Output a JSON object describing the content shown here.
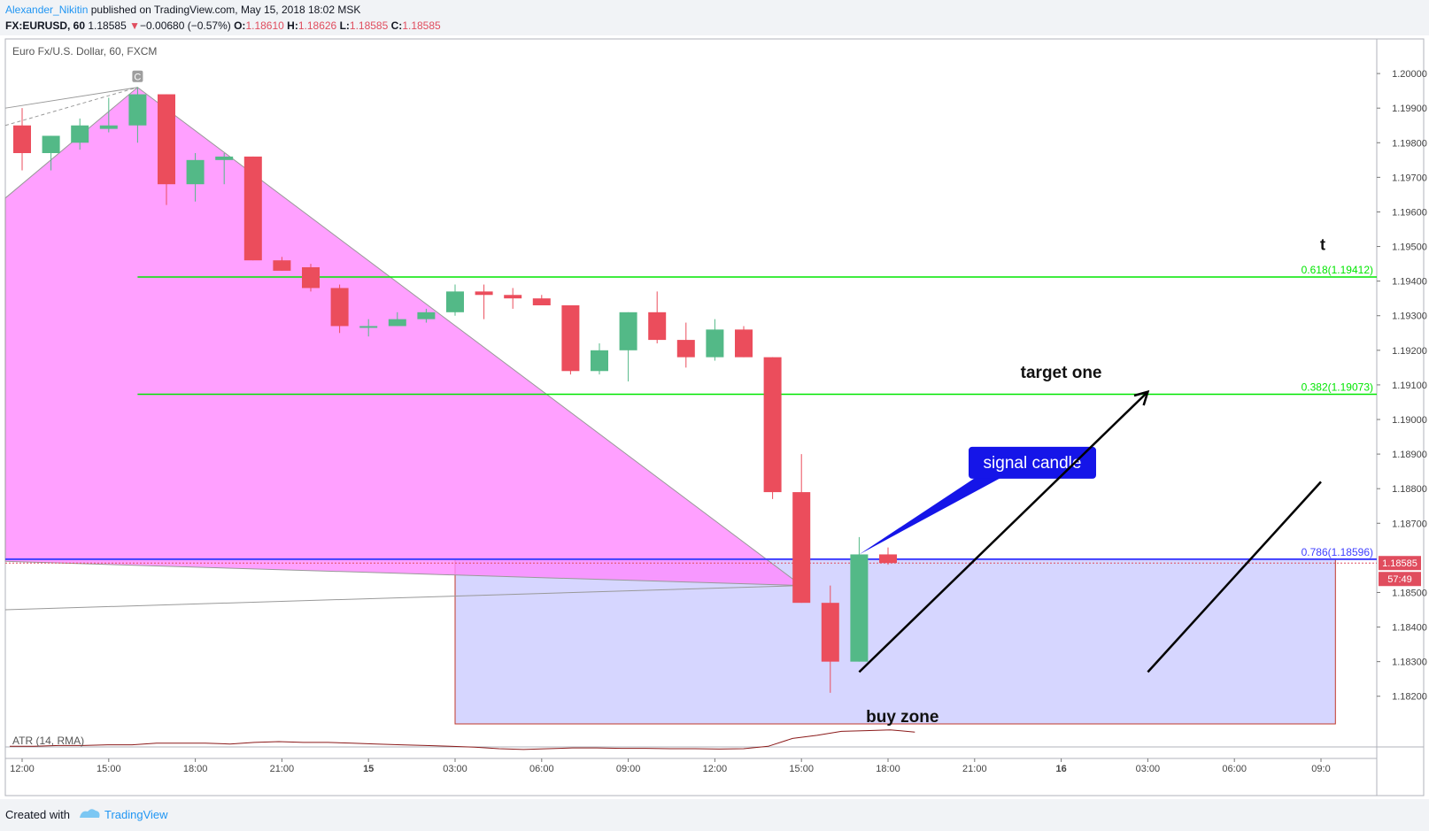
{
  "header": {
    "author": "Alexander_Nikitin",
    "published_text": "published on TradingView.com, May 15, 2018 18:02 MSK",
    "symbol": "FX:EURUSD, 60",
    "last": "1.18585",
    "change_arrow": "▼",
    "change": "−0.00680 (−0.57%)",
    "o_label": "O:",
    "o_value": "1.18610",
    "h_label": "H:",
    "h_value": "1.18626",
    "l_label": "L:",
    "l_value": "1.18585",
    "c_label": "C:",
    "c_value": "1.18585"
  },
  "footer": {
    "created_with": "Created with",
    "brand": "TradingView"
  },
  "chart_data": {
    "type": "candlestick",
    "instrument_label": "Euro Fx/U.S. Dollar, 60, FXCM",
    "interval_minutes": 60,
    "ylim": [
      1.1812,
      1.201
    ],
    "y_ticks": [
      1.182,
      1.183,
      1.184,
      1.185,
      1.187,
      1.188,
      1.189,
      1.19,
      1.191,
      1.192,
      1.193,
      1.194,
      1.195,
      1.196,
      1.197,
      1.198,
      1.199,
      1.2
    ],
    "y_tick_labels": [
      "1.18200",
      "1.18300",
      "1.18400",
      "1.18500",
      "1.18700",
      "1.18800",
      "1.18900",
      "1.19000",
      "1.19100",
      "1.19200",
      "1.19300",
      "1.19400",
      "1.19500",
      "1.19600",
      "1.19700",
      "1.19800",
      "1.19900",
      "1.20000"
    ],
    "x_ticks": [
      {
        "t": "2018-05-14 12:00",
        "label": "12:00"
      },
      {
        "t": "2018-05-14 15:00",
        "label": "15:00"
      },
      {
        "t": "2018-05-14 18:00",
        "label": "18:00"
      },
      {
        "t": "2018-05-14 21:00",
        "label": "21:00"
      },
      {
        "t": "2018-05-15 00:00",
        "label": "15"
      },
      {
        "t": "2018-05-15 03:00",
        "label": "03:00"
      },
      {
        "t": "2018-05-15 06:00",
        "label": "06:00"
      },
      {
        "t": "2018-05-15 09:00",
        "label": "09:00"
      },
      {
        "t": "2018-05-15 12:00",
        "label": "12:00"
      },
      {
        "t": "2018-05-15 15:00",
        "label": "15:00"
      },
      {
        "t": "2018-05-15 18:00",
        "label": "18:00"
      },
      {
        "t": "2018-05-15 21:00",
        "label": "21:00"
      },
      {
        "t": "2018-05-16 00:00",
        "label": "16"
      },
      {
        "t": "2018-05-16 03:00",
        "label": "03:00"
      },
      {
        "t": "2018-05-16 06:00",
        "label": "06:00"
      },
      {
        "t": "2018-05-16 09:00",
        "label": "09:0"
      }
    ],
    "candles": [
      {
        "t": "2018-05-14 12:00",
        "o": 1.1985,
        "h": 1.199,
        "l": 1.1972,
        "c": 1.1977
      },
      {
        "t": "2018-05-14 13:00",
        "o": 1.1977,
        "h": 1.1982,
        "l": 1.1972,
        "c": 1.1982
      },
      {
        "t": "2018-05-14 14:00",
        "o": 1.198,
        "h": 1.1987,
        "l": 1.1978,
        "c": 1.1985
      },
      {
        "t": "2018-05-14 15:00",
        "o": 1.1984,
        "h": 1.1993,
        "l": 1.1983,
        "c": 1.1985
      },
      {
        "t": "2018-05-14 16:00",
        "o": 1.1985,
        "h": 1.1996,
        "l": 1.198,
        "c": 1.1994
      },
      {
        "t": "2018-05-14 17:00",
        "o": 1.1994,
        "h": 1.1994,
        "l": 1.1962,
        "c": 1.1968
      },
      {
        "t": "2018-05-14 18:00",
        "o": 1.1968,
        "h": 1.1977,
        "l": 1.1963,
        "c": 1.1975
      },
      {
        "t": "2018-05-14 19:00",
        "o": 1.1975,
        "h": 1.1977,
        "l": 1.1968,
        "c": 1.1976
      },
      {
        "t": "2018-05-14 20:00",
        "o": 1.1976,
        "h": 1.1976,
        "l": 1.1946,
        "c": 1.1946
      },
      {
        "t": "2018-05-14 21:00",
        "o": 1.1946,
        "h": 1.1947,
        "l": 1.1943,
        "c": 1.1943
      },
      {
        "t": "2018-05-14 22:00",
        "o": 1.1944,
        "h": 1.1945,
        "l": 1.1937,
        "c": 1.1938
      },
      {
        "t": "2018-05-14 23:00",
        "o": 1.1938,
        "h": 1.1939,
        "l": 1.1925,
        "c": 1.1927
      },
      {
        "t": "2018-05-15 00:00",
        "o": 1.1927,
        "h": 1.1929,
        "l": 1.1924,
        "c": 1.1927
      },
      {
        "t": "2018-05-15 01:00",
        "o": 1.1927,
        "h": 1.1931,
        "l": 1.1927,
        "c": 1.1929
      },
      {
        "t": "2018-05-15 02:00",
        "o": 1.1929,
        "h": 1.1932,
        "l": 1.1928,
        "c": 1.1931
      },
      {
        "t": "2018-05-15 03:00",
        "o": 1.1931,
        "h": 1.1939,
        "l": 1.193,
        "c": 1.1937
      },
      {
        "t": "2018-05-15 04:00",
        "o": 1.1937,
        "h": 1.1939,
        "l": 1.1929,
        "c": 1.1936
      },
      {
        "t": "2018-05-15 05:00",
        "o": 1.1936,
        "h": 1.1938,
        "l": 1.1932,
        "c": 1.1935
      },
      {
        "t": "2018-05-15 06:00",
        "o": 1.1935,
        "h": 1.1936,
        "l": 1.1933,
        "c": 1.1933
      },
      {
        "t": "2018-05-15 07:00",
        "o": 1.1933,
        "h": 1.1933,
        "l": 1.1913,
        "c": 1.1914
      },
      {
        "t": "2018-05-15 08:00",
        "o": 1.1914,
        "h": 1.1922,
        "l": 1.1913,
        "c": 1.192
      },
      {
        "t": "2018-05-15 09:00",
        "o": 1.192,
        "h": 1.1931,
        "l": 1.1911,
        "c": 1.1931
      },
      {
        "t": "2018-05-15 10:00",
        "o": 1.1931,
        "h": 1.1937,
        "l": 1.1922,
        "c": 1.1923
      },
      {
        "t": "2018-05-15 11:00",
        "o": 1.1923,
        "h": 1.1928,
        "l": 1.1915,
        "c": 1.1918
      },
      {
        "t": "2018-05-15 12:00",
        "o": 1.1918,
        "h": 1.1929,
        "l": 1.1917,
        "c": 1.1926
      },
      {
        "t": "2018-05-15 13:00",
        "o": 1.1926,
        "h": 1.1927,
        "l": 1.1918,
        "c": 1.1918
      },
      {
        "t": "2018-05-15 14:00",
        "o": 1.1918,
        "h": 1.1918,
        "l": 1.1877,
        "c": 1.1879
      },
      {
        "t": "2018-05-15 15:00",
        "o": 1.1879,
        "h": 1.189,
        "l": 1.1847,
        "c": 1.1847
      },
      {
        "t": "2018-05-15 16:00",
        "o": 1.1847,
        "h": 1.1852,
        "l": 1.1821,
        "c": 1.183
      },
      {
        "t": "2018-05-15 17:00",
        "o": 1.183,
        "h": 1.1866,
        "l": 1.183,
        "c": 1.1861
      },
      {
        "t": "2018-05-15 18:00",
        "o": 1.1861,
        "h": 1.1863,
        "l": 1.1858,
        "c": 1.18585
      }
    ],
    "fib_levels": [
      {
        "label": "0.618(1.19412)",
        "value": 1.19412,
        "color": "#00e600"
      },
      {
        "label": "0.382(1.19073)",
        "value": 1.19073,
        "color": "#00e600"
      },
      {
        "label": "0.786(1.18596)",
        "value": 1.18596,
        "color": "#3f3fff"
      }
    ],
    "last_price_label": "1.18585",
    "countdown_label": "57:49",
    "buy_zone": {
      "t_start": "2018-05-15 03:00",
      "t_end": "2018-05-16 09:30",
      "y_top": 1.18596,
      "y_bottom": 1.1812,
      "color": "#d6d6ff"
    },
    "pattern_triangle": [
      {
        "t": "2018-05-14 11:00",
        "y": 1.1964
      },
      {
        "t": "2018-05-14 16:00",
        "y": 1.1996
      },
      {
        "t": "2018-05-15 15:00",
        "y": 1.1852
      },
      {
        "t": "2018-05-14 11:00",
        "y": 1.1859
      }
    ],
    "pattern_point_label": "C",
    "annotations": [
      {
        "text": "target one",
        "t": "2018-05-16 00:00",
        "y": 1.1912
      },
      {
        "text": "signal candle",
        "t": "2018-05-15 23:00",
        "y": 1.18875
      },
      {
        "text": "buy zone",
        "t": "2018-05-15 18:30",
        "y": 1.1812
      },
      {
        "text": "t",
        "t": "2018-05-16 09:00",
        "y": 1.1949
      }
    ],
    "arrow_lines": [
      {
        "from": {
          "t": "2018-05-15 17:00",
          "y": 1.1827
        },
        "to": {
          "t": "2018-05-16 03:00",
          "y": 1.1908
        },
        "arrowhead": true
      },
      {
        "from": {
          "t": "2018-05-16 03:00",
          "y": 1.1827
        },
        "to": {
          "t": "2018-05-16 09:00",
          "y": 1.1882
        },
        "arrowhead": false
      }
    ],
    "indicator": {
      "label": "ATR (14, RMA)",
      "values": [
        1.2,
        1.2,
        1.3,
        1.3,
        1.4,
        1.4,
        1.6,
        1.6,
        1.6,
        1.5,
        1.7,
        1.8,
        1.7,
        1.7,
        1.6,
        1.5,
        1.4,
        1.3,
        1.2,
        1.1,
        0.9,
        0.8,
        0.9,
        1.0,
        1.0,
        0.95,
        0.95,
        0.9,
        0.9,
        0.85,
        0.9,
        1.2,
        2.2,
        2.6,
        3.1,
        3.2,
        3.3,
        3.0
      ]
    }
  }
}
